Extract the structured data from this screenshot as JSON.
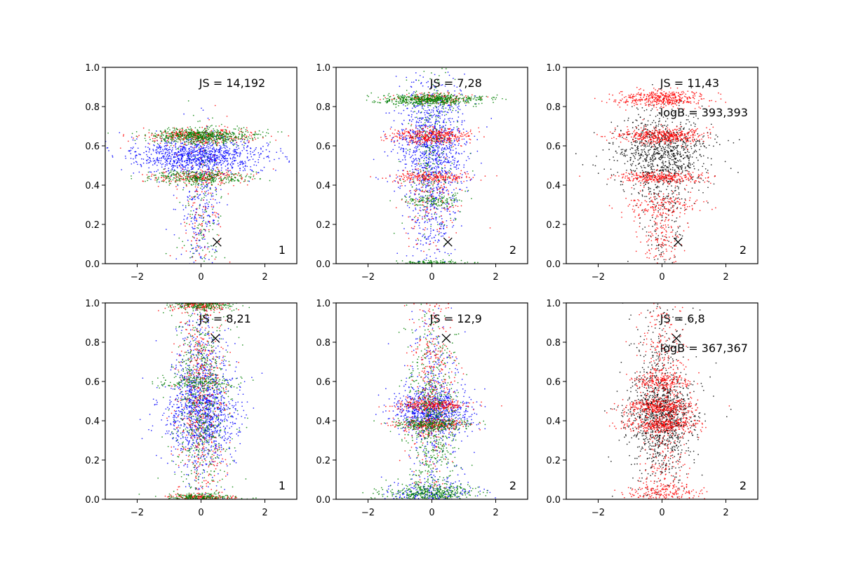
{
  "figure": {
    "grid": "2x3",
    "background": "#ffffff"
  },
  "chart_data": [
    {
      "type": "scatter",
      "panel": "top-left",
      "xlim": [
        -3,
        3
      ],
      "ylim": [
        0,
        1
      ],
      "xticks": [
        -2,
        0,
        2
      ],
      "yticks": [
        0.0,
        0.2,
        0.4,
        0.6,
        0.8,
        1.0
      ],
      "xtick_labels": [
        "−2",
        "0",
        "2"
      ],
      "ytick_labels": [
        "0.0",
        "0.2",
        "0.4",
        "0.6",
        "0.8",
        "1.0"
      ],
      "js_text": "JS = 14,192",
      "corner_label": "1",
      "marker": {
        "x": 0.5,
        "y": 0.11,
        "symbol": "×"
      },
      "series": [
        {
          "name": "blue",
          "color": "#0000ff",
          "count": 1300,
          "clusters": [
            {
              "y": 0.55,
              "sy": 0.045,
              "sx": 1.0,
              "w": 0.78
            },
            {
              "y": 0.3,
              "sy": 0.2,
              "sx": 0.35,
              "w": 0.22
            }
          ]
        },
        {
          "name": "red",
          "color": "#ff0000",
          "count": 700,
          "clusters": [
            {
              "y": 0.65,
              "sy": 0.02,
              "sx": 0.8,
              "w": 0.5
            },
            {
              "y": 0.44,
              "sy": 0.018,
              "sx": 0.8,
              "w": 0.3
            },
            {
              "y": 0.25,
              "sy": 0.22,
              "sx": 0.35,
              "w": 0.2
            }
          ]
        },
        {
          "name": "green",
          "color": "#008000",
          "count": 1100,
          "clusters": [
            {
              "y": 0.65,
              "sy": 0.02,
              "sx": 0.8,
              "w": 0.55
            },
            {
              "y": 0.44,
              "sy": 0.018,
              "sx": 0.8,
              "w": 0.3
            },
            {
              "y": 0.25,
              "sy": 0.25,
              "sx": 0.35,
              "w": 0.15
            }
          ]
        }
      ]
    },
    {
      "type": "scatter",
      "panel": "top-middle",
      "xlim": [
        -3,
        3
      ],
      "ylim": [
        0,
        1
      ],
      "xticks": [
        -2,
        0,
        2
      ],
      "yticks": [
        0.0,
        0.2,
        0.4,
        0.6,
        0.8,
        1.0
      ],
      "xtick_labels": [
        "−2",
        "0",
        "2"
      ],
      "ytick_labels": [
        "0.0",
        "0.2",
        "0.4",
        "0.6",
        "0.8",
        "1.0"
      ],
      "js_text": "JS = 7,28",
      "corner_label": "2",
      "marker": {
        "x": 0.5,
        "y": 0.11,
        "symbol": "×"
      },
      "series": [
        {
          "name": "blue",
          "color": "#0000ff",
          "count": 1300,
          "clusters": [
            {
              "y": 0.6,
              "sy": 0.17,
              "sx": 0.55,
              "w": 0.85
            },
            {
              "y": 0.2,
              "sy": 0.12,
              "sx": 0.35,
              "w": 0.15
            }
          ]
        },
        {
          "name": "red",
          "color": "#ff0000",
          "count": 900,
          "clusters": [
            {
              "y": 0.65,
              "sy": 0.02,
              "sx": 0.6,
              "w": 0.45
            },
            {
              "y": 0.44,
              "sy": 0.015,
              "sx": 0.6,
              "w": 0.25
            },
            {
              "y": 0.84,
              "sy": 0.015,
              "sx": 0.6,
              "w": 0.15
            },
            {
              "y": 0.3,
              "sy": 0.1,
              "sx": 0.45,
              "w": 0.15
            }
          ]
        },
        {
          "name": "green",
          "color": "#008000",
          "count": 1100,
          "clusters": [
            {
              "y": 0.835,
              "sy": 0.015,
              "sx": 0.8,
              "w": 0.55
            },
            {
              "y": 0.005,
              "sy": 0.006,
              "sx": 0.6,
              "w": 0.12
            },
            {
              "y": 0.32,
              "sy": 0.015,
              "sx": 0.55,
              "w": 0.1
            },
            {
              "y": 0.5,
              "sy": 0.22,
              "sx": 0.4,
              "w": 0.23
            }
          ]
        }
      ]
    },
    {
      "type": "scatter",
      "panel": "top-right",
      "xlim": [
        -3,
        3
      ],
      "ylim": [
        0,
        1
      ],
      "xticks": [
        -2,
        0,
        2
      ],
      "yticks": [
        0.0,
        0.2,
        0.4,
        0.6,
        0.8,
        1.0
      ],
      "xtick_labels": [
        "−2",
        "0",
        "2"
      ],
      "ytick_labels": [
        "0.0",
        "0.2",
        "0.4",
        "0.6",
        "0.8",
        "1.0"
      ],
      "js_text": "JS = 11,43",
      "logb_text": "logB = 393,393",
      "corner_label": "2",
      "marker": {
        "x": 0.5,
        "y": 0.11,
        "symbol": "×"
      },
      "series": [
        {
          "name": "black",
          "color": "#000000",
          "count": 1100,
          "clusters": [
            {
              "y": 0.57,
              "sy": 0.1,
              "sx": 0.75,
              "w": 0.8
            },
            {
              "y": 0.3,
              "sy": 0.2,
              "sx": 0.35,
              "w": 0.2
            }
          ]
        },
        {
          "name": "red",
          "color": "#ff0000",
          "count": 1500,
          "clusters": [
            {
              "y": 0.84,
              "sy": 0.02,
              "sx": 0.7,
              "w": 0.3
            },
            {
              "y": 0.65,
              "sy": 0.02,
              "sx": 0.7,
              "w": 0.3
            },
            {
              "y": 0.44,
              "sy": 0.015,
              "sx": 0.7,
              "w": 0.2
            },
            {
              "y": 0.3,
              "sy": 0.03,
              "sx": 0.65,
              "w": 0.1
            },
            {
              "y": 0.15,
              "sy": 0.1,
              "sx": 0.35,
              "w": 0.1
            }
          ]
        }
      ]
    },
    {
      "type": "scatter",
      "panel": "bottom-left",
      "xlim": [
        -3,
        3
      ],
      "ylim": [
        0,
        1
      ],
      "xticks": [
        -2,
        0,
        2
      ],
      "yticks": [
        0.0,
        0.2,
        0.4,
        0.6,
        0.8,
        1.0
      ],
      "xtick_labels": [
        "−2",
        "0",
        "2"
      ],
      "ytick_labels": [
        "0.0",
        "0.2",
        "0.4",
        "0.6",
        "0.8",
        "1.0"
      ],
      "js_text": "JS = 8,21",
      "corner_label": "1",
      "marker": {
        "x": 0.45,
        "y": 0.82,
        "symbol": "×"
      },
      "series": [
        {
          "name": "blue",
          "color": "#0000ff",
          "count": 1400,
          "clusters": [
            {
              "y": 0.45,
              "sy": 0.12,
              "sx": 0.6,
              "w": 0.6
            },
            {
              "y": 0.5,
              "sy": 0.3,
              "sx": 0.4,
              "w": 0.4
            }
          ]
        },
        {
          "name": "red",
          "color": "#ff0000",
          "count": 900,
          "clusters": [
            {
              "y": 0.5,
              "sy": 0.3,
              "sx": 0.4,
              "w": 0.6
            },
            {
              "y": 0.99,
              "sy": 0.015,
              "sx": 0.5,
              "w": 0.2
            },
            {
              "y": 0.01,
              "sy": 0.01,
              "sx": 0.5,
              "w": 0.2
            }
          ]
        },
        {
          "name": "green",
          "color": "#008000",
          "count": 1200,
          "clusters": [
            {
              "y": 0.5,
              "sy": 0.28,
              "sx": 0.45,
              "w": 0.6
            },
            {
              "y": 0.6,
              "sy": 0.015,
              "sx": 0.6,
              "w": 0.1
            },
            {
              "y": 0.99,
              "sy": 0.015,
              "sx": 0.5,
              "w": 0.15
            },
            {
              "y": 0.01,
              "sy": 0.01,
              "sx": 0.5,
              "w": 0.15
            }
          ]
        }
      ]
    },
    {
      "type": "scatter",
      "panel": "bottom-middle",
      "xlim": [
        -3,
        3
      ],
      "ylim": [
        0,
        1
      ],
      "xticks": [
        -2,
        0,
        2
      ],
      "yticks": [
        0.0,
        0.2,
        0.4,
        0.6,
        0.8,
        1.0
      ],
      "xtick_labels": [
        "−2",
        "0",
        "2"
      ],
      "ytick_labels": [
        "0.0",
        "0.2",
        "0.4",
        "0.6",
        "0.8",
        "1.0"
      ],
      "js_text": "JS = 12,9",
      "corner_label": "2",
      "marker": {
        "x": 0.45,
        "y": 0.82,
        "symbol": "×"
      },
      "series": [
        {
          "name": "blue",
          "color": "#0000ff",
          "count": 1300,
          "clusters": [
            {
              "y": 0.45,
              "sy": 0.06,
              "sx": 0.6,
              "w": 0.55
            },
            {
              "y": 0.5,
              "sy": 0.25,
              "sx": 0.4,
              "w": 0.3
            },
            {
              "y": 0.03,
              "sy": 0.03,
              "sx": 0.7,
              "w": 0.15
            }
          ]
        },
        {
          "name": "red",
          "color": "#ff0000",
          "count": 900,
          "clusters": [
            {
              "y": 0.48,
              "sy": 0.015,
              "sx": 0.6,
              "w": 0.3
            },
            {
              "y": 0.38,
              "sy": 0.015,
              "sx": 0.6,
              "w": 0.25
            },
            {
              "y": 0.6,
              "sy": 0.3,
              "sx": 0.35,
              "w": 0.45
            }
          ]
        },
        {
          "name": "green",
          "color": "#008000",
          "count": 1300,
          "clusters": [
            {
              "y": 0.38,
              "sy": 0.015,
              "sx": 0.6,
              "w": 0.2
            },
            {
              "y": 0.03,
              "sy": 0.025,
              "sx": 0.7,
              "w": 0.3
            },
            {
              "y": 0.4,
              "sy": 0.25,
              "sx": 0.4,
              "w": 0.5
            }
          ]
        }
      ]
    },
    {
      "type": "scatter",
      "panel": "bottom-right",
      "xlim": [
        -3,
        3
      ],
      "ylim": [
        0,
        1
      ],
      "xticks": [
        -2,
        0,
        2
      ],
      "yticks": [
        0.0,
        0.2,
        0.4,
        0.6,
        0.8,
        1.0
      ],
      "xtick_labels": [
        "−2",
        "0",
        "2"
      ],
      "ytick_labels": [
        "0.0",
        "0.2",
        "0.4",
        "0.6",
        "0.8",
        "1.0"
      ],
      "js_text": "JS = 6,8",
      "logb_text": "logB = 367,367",
      "corner_label": "2",
      "marker": {
        "x": 0.45,
        "y": 0.82,
        "symbol": "×"
      },
      "series": [
        {
          "name": "black",
          "color": "#000000",
          "count": 1300,
          "clusters": [
            {
              "y": 0.42,
              "sy": 0.1,
              "sx": 0.6,
              "w": 0.5
            },
            {
              "y": 0.45,
              "sy": 0.28,
              "sx": 0.45,
              "w": 0.5
            }
          ]
        },
        {
          "name": "red",
          "color": "#ff0000",
          "count": 1500,
          "clusters": [
            {
              "y": 0.47,
              "sy": 0.02,
              "sx": 0.6,
              "w": 0.2
            },
            {
              "y": 0.38,
              "sy": 0.02,
              "sx": 0.6,
              "w": 0.2
            },
            {
              "y": 0.6,
              "sy": 0.02,
              "sx": 0.45,
              "w": 0.1
            },
            {
              "y": 0.03,
              "sy": 0.03,
              "sx": 0.6,
              "w": 0.15
            },
            {
              "y": 0.5,
              "sy": 0.3,
              "sx": 0.4,
              "w": 0.35
            }
          ]
        }
      ]
    }
  ]
}
